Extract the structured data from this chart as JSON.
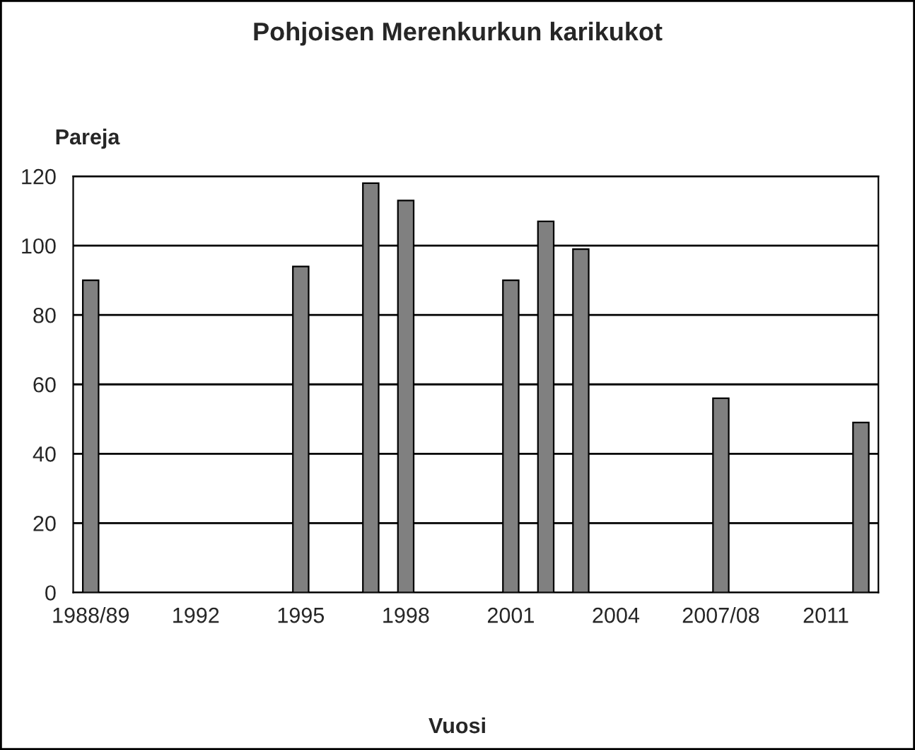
{
  "chart_data": {
    "type": "bar",
    "title": "Pohjoisen Merenkurkun karikukot",
    "xlabel": "Vuosi",
    "ylabel": "Pareja",
    "categories": [
      "1988/89",
      null,
      null,
      "1992",
      null,
      null,
      "1995",
      null,
      null,
      "1998",
      null,
      null,
      "2001",
      null,
      null,
      "2004",
      null,
      null,
      "2007/08",
      null,
      null,
      "2011",
      null
    ],
    "values": [
      90,
      null,
      null,
      null,
      null,
      null,
      94,
      null,
      118,
      113,
      null,
      null,
      90,
      107,
      99,
      null,
      null,
      null,
      56,
      null,
      null,
      null,
      49
    ],
    "color": "#808080",
    "ylim": [
      0,
      120
    ],
    "yticks": [
      0,
      20,
      40,
      60,
      80,
      100,
      120
    ],
    "grid": "y",
    "legend": false
  }
}
